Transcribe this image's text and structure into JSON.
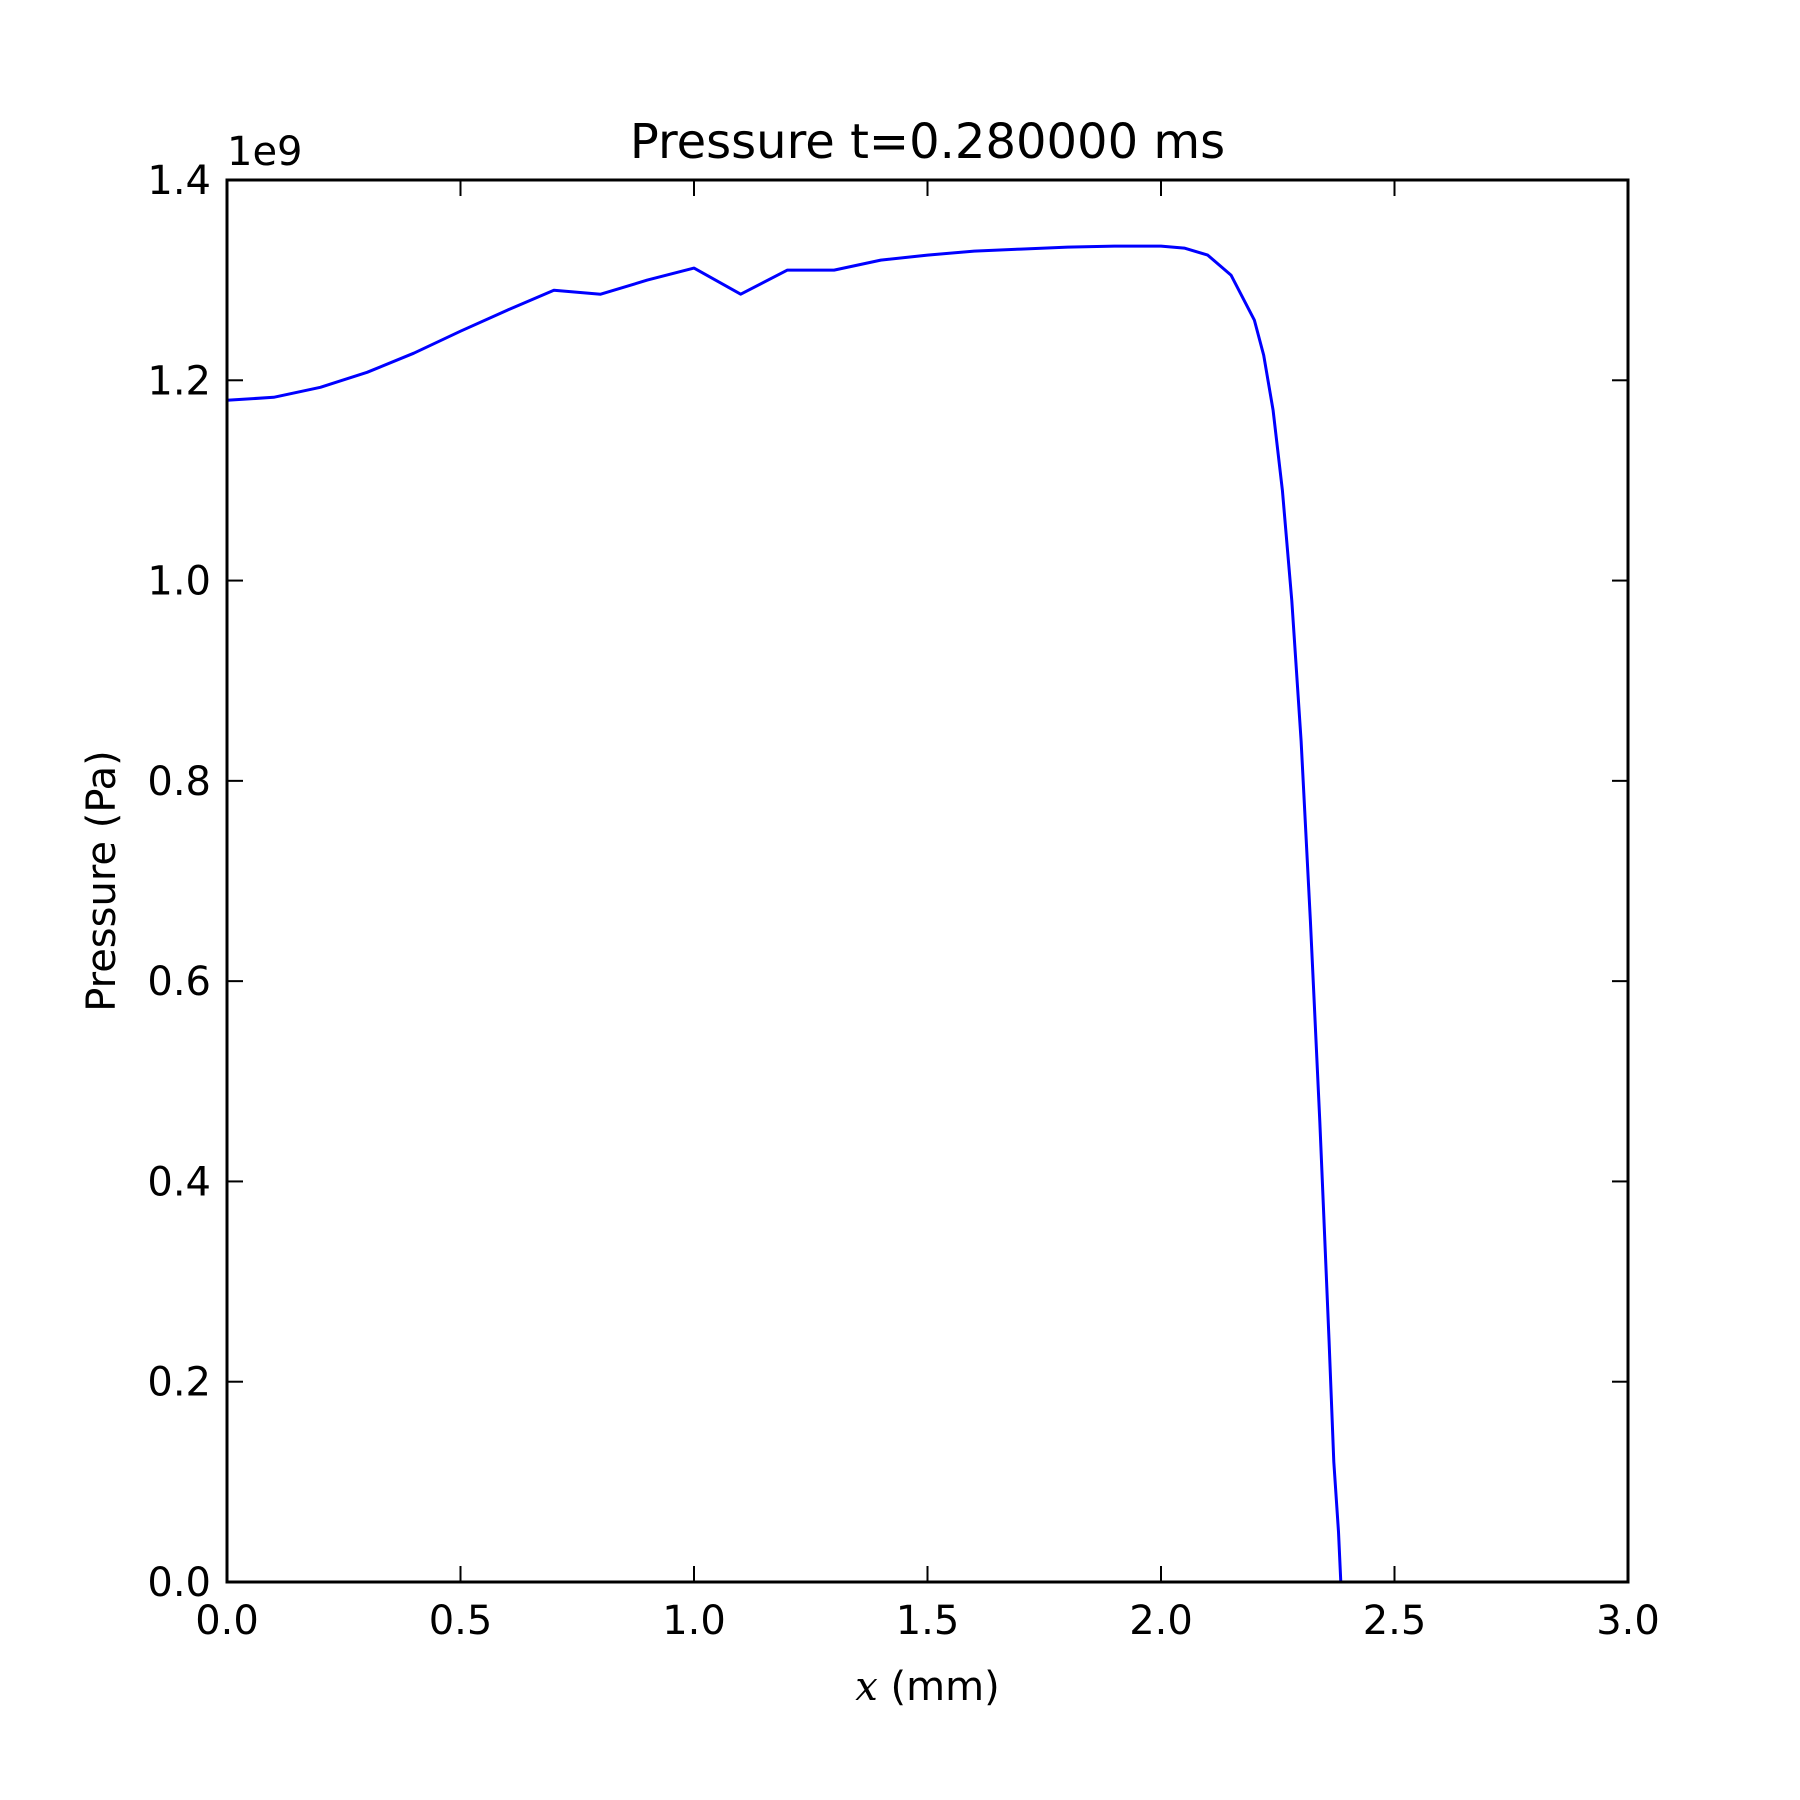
{
  "chart_data": {
    "type": "line",
    "title": "Pressure t=0.280000 ms",
    "xlabel_var": "x",
    "xlabel_unit": " (mm)",
    "ylabel": "Pressure (Pa)",
    "y_offset_label": "1e9",
    "xlim": [
      0.0,
      3.0
    ],
    "ylim": [
      0.0,
      1.4
    ],
    "x_ticks": [
      0.0,
      0.5,
      1.0,
      1.5,
      2.0,
      2.5,
      3.0
    ],
    "x_tick_labels": [
      "0.0",
      "0.5",
      "1.0",
      "1.5",
      "2.0",
      "2.5",
      "3.0"
    ],
    "y_ticks": [
      0.0,
      0.2,
      0.4,
      0.6,
      0.8,
      1.0,
      1.2,
      1.4
    ],
    "y_tick_labels": [
      "0.0",
      "0.2",
      "0.4",
      "0.6",
      "0.8",
      "1.0",
      "1.2",
      "1.4"
    ],
    "grid": false,
    "legend": "none",
    "series": [
      {
        "color": "#0000ff",
        "x": [
          0.0,
          0.1,
          0.2,
          0.3,
          0.4,
          0.5,
          0.6,
          0.7,
          0.8,
          0.9,
          1.0,
          1.1,
          1.2,
          1.3,
          1.4,
          1.5,
          1.6,
          1.7,
          1.8,
          1.9,
          1.95,
          2.0,
          2.05,
          2.1,
          2.15,
          2.2,
          2.22,
          2.24,
          2.26,
          2.28,
          2.3,
          2.32,
          2.34,
          2.36,
          2.37,
          2.38,
          2.385
        ],
        "y": [
          1.18,
          1.183,
          1.193,
          1.208,
          1.227,
          1.249,
          1.27,
          1.29,
          1.286,
          1.3,
          1.312,
          1.286,
          1.31,
          1.31,
          1.32,
          1.325,
          1.329,
          1.331,
          1.333,
          1.334,
          1.334,
          1.334,
          1.332,
          1.325,
          1.305,
          1.26,
          1.225,
          1.17,
          1.09,
          0.98,
          0.84,
          0.66,
          0.46,
          0.24,
          0.12,
          0.05,
          0.0
        ]
      }
    ]
  }
}
